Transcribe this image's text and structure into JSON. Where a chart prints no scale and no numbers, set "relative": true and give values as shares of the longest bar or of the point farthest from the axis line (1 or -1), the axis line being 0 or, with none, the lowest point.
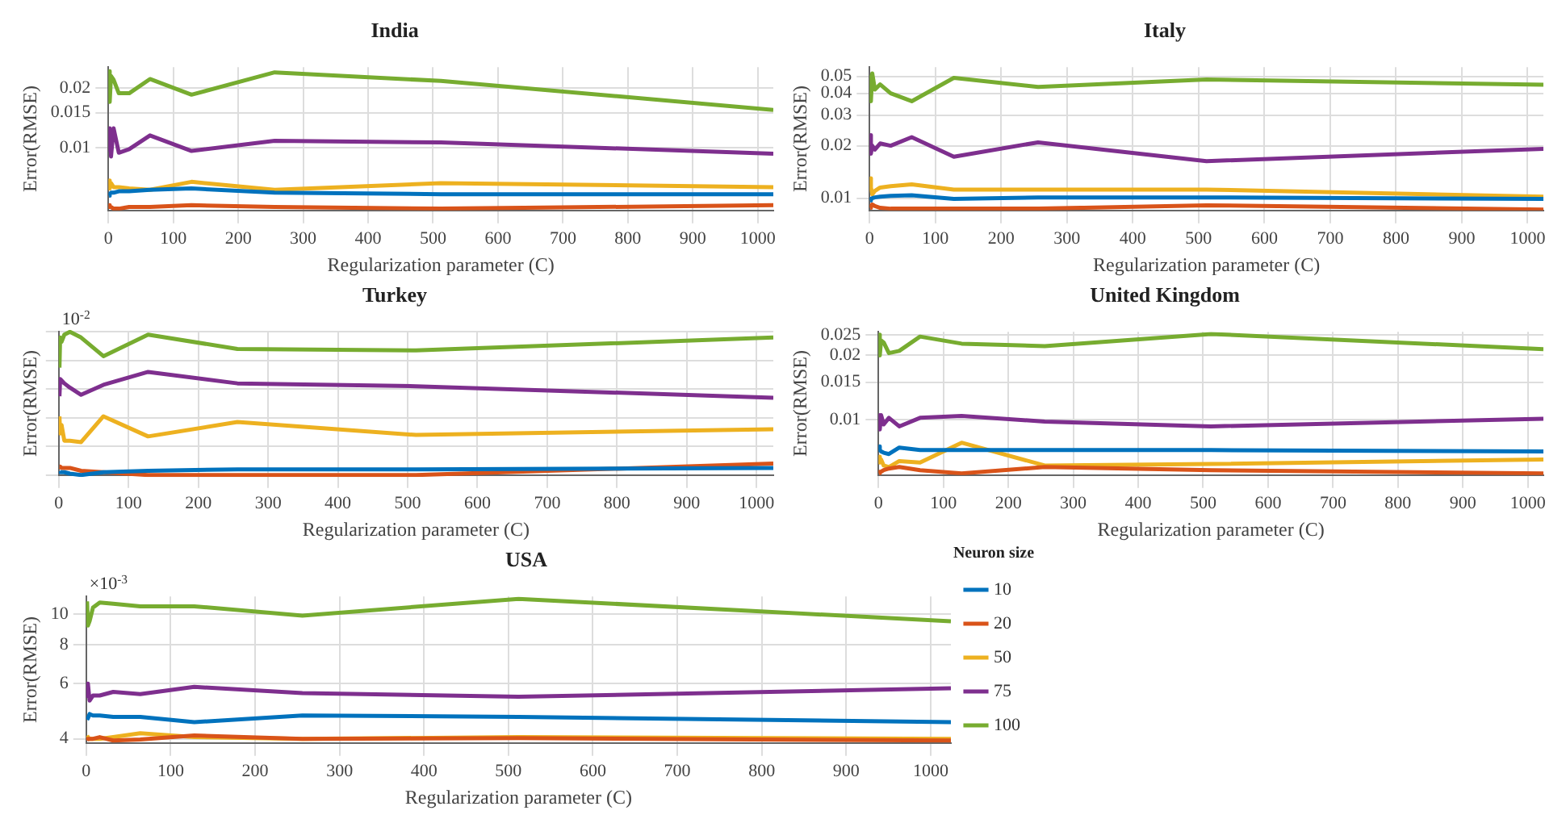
{
  "chart_data": [
    {
      "type": "line",
      "title": "India",
      "xlabel": "Regularization parameter (C)",
      "ylabel": "Error(RMSE)",
      "log": "y",
      "grid": true,
      "x": [
        1,
        2,
        4,
        8,
        16,
        32,
        64,
        128,
        256,
        512,
        1024
      ],
      "xlim": [
        0,
        1024
      ],
      "xticks": [
        0,
        100,
        200,
        300,
        400,
        500,
        600,
        700,
        800,
        900,
        1000
      ],
      "ylim": [
        0.0048,
        0.0255
      ],
      "yticks": [
        0.01,
        0.015,
        0.02
      ],
      "series": [
        {
          "color": "#0072bd",
          "values": [
            0.0057,
            0.0058,
            0.0059,
            0.0059,
            0.006,
            0.006,
            0.0061,
            0.0062,
            0.0059,
            0.0058,
            0.0058
          ]
        },
        {
          "color": "#d95319",
          "values": [
            0.0051,
            0.005,
            0.005,
            0.0049,
            0.0049,
            0.005,
            0.005,
            0.0051,
            0.005,
            0.0049,
            0.0051
          ]
        },
        {
          "color": "#edb120",
          "values": [
            0.0068,
            0.0062,
            0.0066,
            0.0063,
            0.0063,
            0.0062,
            0.0061,
            0.0067,
            0.0061,
            0.0066,
            0.0063
          ]
        },
        {
          "color": "#7e2f8e",
          "values": [
            0.0095,
            0.0125,
            0.009,
            0.0125,
            0.0094,
            0.0098,
            0.0115,
            0.0096,
            0.0108,
            0.0106,
            0.0093
          ]
        },
        {
          "color": "#77ac30",
          "values": [
            0.0243,
            0.017,
            0.023,
            0.022,
            0.0188,
            0.0188,
            0.0222,
            0.0185,
            0.024,
            0.0217,
            0.0155
          ]
        }
      ]
    },
    {
      "type": "line",
      "title": "Italy",
      "xlabel": "Regularization parameter (C)",
      "ylabel": "Error(RMSE)",
      "log": "y",
      "grid": true,
      "x": [
        1,
        2,
        4,
        8,
        16,
        32,
        64,
        128,
        256,
        512,
        1024
      ],
      "xlim": [
        0,
        1024
      ],
      "xticks": [
        0,
        100,
        200,
        300,
        400,
        500,
        600,
        700,
        800,
        900,
        1000
      ],
      "ylim": [
        0.0085,
        0.0565
      ],
      "yticks": [
        0.01,
        0.02,
        0.03,
        0.04,
        0.05
      ],
      "series": [
        {
          "color": "#0072bd",
          "values": [
            0.0097,
            0.0099,
            0.01,
            0.0101,
            0.0102,
            0.0103,
            0.0104,
            0.0099,
            0.0101,
            0.0101,
            0.0099
          ]
        },
        {
          "color": "#d95319",
          "values": [
            0.0088,
            0.009,
            0.0092,
            0.009,
            0.0088,
            0.0087,
            0.0087,
            0.0087,
            0.0087,
            0.0091,
            0.0086
          ]
        },
        {
          "color": "#edb120",
          "values": [
            0.013,
            0.0115,
            0.0105,
            0.011,
            0.0115,
            0.0117,
            0.012,
            0.0112,
            0.0112,
            0.0112,
            0.0102
          ]
        },
        {
          "color": "#7e2f8e",
          "values": [
            0.023,
            0.018,
            0.02,
            0.019,
            0.0206,
            0.02,
            0.0224,
            0.0173,
            0.0209,
            0.0163,
            0.0192
          ]
        },
        {
          "color": "#77ac30",
          "values": [
            0.05,
            0.036,
            0.052,
            0.042,
            0.045,
            0.04,
            0.036,
            0.049,
            0.0435,
            0.048,
            0.0448
          ]
        }
      ]
    },
    {
      "type": "line",
      "title": "Turkey",
      "xlabel": "Regularization parameter (C)",
      "ylabel": "Error(RMSE)",
      "relative": true,
      "grid": true,
      "annotations": [
        "10$^{-2}$"
      ],
      "x": [
        1,
        2,
        4,
        8,
        16,
        32,
        64,
        128,
        256,
        512,
        1024
      ],
      "xlim": [
        0,
        1024
      ],
      "xticks": [
        0,
        100,
        200,
        300,
        400,
        500,
        600,
        700,
        800,
        900,
        1000
      ],
      "series": [
        {
          "color": "#0072bd",
          "values": [
            0.03,
            0.02,
            0.02,
            0.02,
            0.01,
            0,
            0.02,
            0.03,
            0.04,
            0.04,
            0.05
          ]
        },
        {
          "color": "#d95319",
          "values": [
            0.06,
            0.06,
            0.05,
            0.05,
            0.05,
            0.03,
            0.02,
            0,
            0,
            0,
            0.08
          ]
        },
        {
          "color": "#edb120",
          "values": [
            0.41,
            0.29,
            0.35,
            0.24,
            0.24,
            0.23,
            0.41,
            0.27,
            0.37,
            0.28,
            0.32
          ]
        },
        {
          "color": "#7e2f8e",
          "values": [
            0.55,
            0.67,
            0.66,
            0.64,
            0.61,
            0.56,
            0.63,
            0.72,
            0.64,
            0.62,
            0.54
          ]
        },
        {
          "color": "#77ac30",
          "values": [
            0.75,
            0.96,
            0.93,
            0.98,
            1,
            0.96,
            0.83,
            0.98,
            0.88,
            0.87,
            0.96
          ]
        }
      ]
    },
    {
      "type": "line",
      "title": "United Kingdom",
      "xlabel": "Regularization parameter (C)",
      "ylabel": "Error(RMSE)",
      "log": "y",
      "grid": true,
      "x": [
        1,
        2,
        4,
        8,
        16,
        32,
        64,
        128,
        256,
        512,
        1024
      ],
      "xlim": [
        0,
        1024
      ],
      "xticks": [
        0,
        100,
        200,
        300,
        400,
        500,
        600,
        700,
        800,
        900,
        1000
      ],
      "ylim": [
        0.0055,
        0.0258
      ],
      "yticks": [
        0.01,
        0.015,
        0.02,
        0.025
      ],
      "series": [
        {
          "color": "#0072bd",
          "values": [
            0.0075,
            0.0072,
            0.0071,
            0.007,
            0.0069,
            0.0074,
            0.0072,
            0.0072,
            0.0072,
            0.0072,
            0.0071
          ]
        },
        {
          "color": "#d95319",
          "values": [
            0.0056,
            0.0057,
            0.0057,
            0.0058,
            0.0059,
            0.006,
            0.0058,
            0.0056,
            0.006,
            0.0058,
            0.0056
          ]
        },
        {
          "color": "#edb120",
          "values": [
            0.0067,
            0.0063,
            0.0065,
            0.0061,
            0.006,
            0.0064,
            0.0063,
            0.0078,
            0.0061,
            0.0062,
            0.0065
          ]
        },
        {
          "color": "#7e2f8e",
          "values": [
            0.0105,
            0.009,
            0.0105,
            0.0095,
            0.0102,
            0.0093,
            0.0102,
            0.0104,
            0.0098,
            0.0093,
            0.0101
          ]
        },
        {
          "color": "#77ac30",
          "values": [
            0.025,
            0.02,
            0.0235,
            0.023,
            0.0205,
            0.021,
            0.0245,
            0.0227,
            0.0221,
            0.0252,
            0.0214
          ]
        }
      ]
    },
    {
      "type": "line",
      "title": "USA",
      "xlabel": "Regularization parameter (C)",
      "ylabel": "Error(RMSE)",
      "log": "y",
      "grid": true,
      "legend": "right",
      "legend_title": "Neuron size",
      "annotations": [
        "×10$^{-3}$"
      ],
      "x": [
        1,
        2,
        4,
        8,
        16,
        32,
        64,
        128,
        256,
        512,
        1024
      ],
      "xlim": [
        0,
        1024
      ],
      "xticks": [
        0,
        100,
        200,
        300,
        400,
        500,
        600,
        700,
        800,
        900,
        1000
      ],
      "ylim": [
        3.88,
        11.4
      ],
      "yticks": [
        4,
        6,
        8,
        10
      ],
      "series": [
        {
          "name": "10",
          "color": "#0072bd",
          "values": [
            4.6,
            4.65,
            4.8,
            4.75,
            4.75,
            4.7,
            4.7,
            4.52,
            4.75,
            4.7,
            4.52
          ]
        },
        {
          "name": "20",
          "color": "#d95319",
          "values": [
            3.95,
            4.0,
            4.0,
            4.0,
            4.05,
            3.95,
            3.98,
            4.1,
            4.0,
            4.02,
            3.95
          ]
        },
        {
          "name": "50",
          "color": "#edb120",
          "values": [
            4.1,
            4.05,
            4.0,
            4.0,
            4.0,
            4.05,
            4.17,
            4.05,
            4.0,
            4.05,
            4.0
          ]
        },
        {
          "name": "75",
          "color": "#7e2f8e",
          "values": [
            5.4,
            6.0,
            5.3,
            5.5,
            5.5,
            5.65,
            5.56,
            5.86,
            5.6,
            5.45,
            5.8
          ]
        },
        {
          "name": "100",
          "color": "#77ac30",
          "values": [
            11.0,
            9.2,
            9.5,
            10.5,
            10.9,
            10.8,
            10.6,
            10.6,
            9.9,
            11.2,
            9.5
          ]
        }
      ]
    }
  ]
}
